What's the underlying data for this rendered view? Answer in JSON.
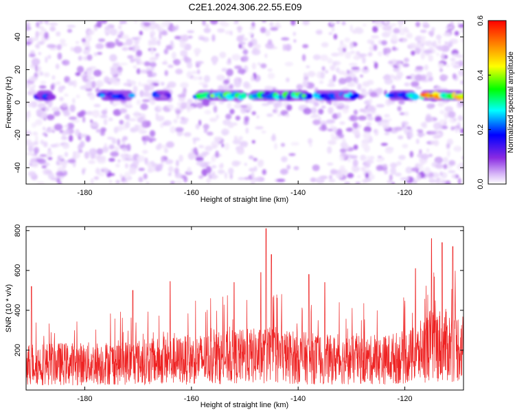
{
  "title": "C2E1.2024.306.22.55.E09",
  "chart_data": [
    {
      "type": "heatmap",
      "xlabel": "Height of straight line (km)",
      "ylabel": "Frequency (Hz)",
      "xlim": [
        -191,
        -109
      ],
      "ylim": [
        -50,
        50
      ],
      "xticks": [
        -180,
        -160,
        -140,
        -120
      ],
      "yticks": [
        -40,
        -20,
        0,
        20,
        40
      ],
      "grid": false,
      "colorbar": {
        "label": "Normalized spectral amplitude",
        "range": [
          0.0,
          0.6
        ],
        "ticks": [
          "0.0",
          "0.2",
          "0.4",
          "0.6"
        ],
        "colormap": [
          "#ffffff",
          "#d8b8f8",
          "#8a2be2",
          "#0000ff",
          "#00ffff",
          "#00ff00",
          "#ffff00",
          "#ff8000",
          "#ff0000"
        ]
      },
      "band": {
        "frequency_hz": 4,
        "segments": [
          {
            "x": [
              -189,
              -186
            ],
            "peak": 0.25
          },
          {
            "x": [
              -177,
              -171
            ],
            "peak": 0.28
          },
          {
            "x": [
              -167,
              -164
            ],
            "peak": 0.25
          },
          {
            "x": [
              -159,
              -150
            ],
            "peak": 0.42
          },
          {
            "x": [
              -149,
              -138
            ],
            "peak": 0.4
          },
          {
            "x": [
              -137,
              -129
            ],
            "peak": 0.3
          },
          {
            "x": [
              -123,
              -118
            ],
            "peak": 0.32
          },
          {
            "x": [
              -117,
              -109
            ],
            "peak": 0.55
          }
        ]
      }
    },
    {
      "type": "line",
      "xlabel": "Height of straight line (km)",
      "ylabel": "SNR (10 * v/v)",
      "xlim": [
        -191,
        -109
      ],
      "ylim": [
        0,
        820
      ],
      "xticks": [
        -180,
        -160,
        -140,
        -120
      ],
      "yticks": [
        200,
        400,
        600,
        800
      ],
      "color": "#ee2222",
      "grid": false,
      "trend": [
        {
          "x": -191,
          "y": 160
        },
        {
          "x": -180,
          "y": 160
        },
        {
          "x": -165,
          "y": 175
        },
        {
          "x": -150,
          "y": 205
        },
        {
          "x": -145,
          "y": 210
        },
        {
          "x": -135,
          "y": 185
        },
        {
          "x": -125,
          "y": 180
        },
        {
          "x": -118,
          "y": 210
        },
        {
          "x": -115,
          "y": 280
        },
        {
          "x": -109,
          "y": 260
        }
      ],
      "peaks": [
        {
          "x": -190,
          "y": 520
        },
        {
          "x": -171,
          "y": 500
        },
        {
          "x": -164,
          "y": 545
        },
        {
          "x": -152,
          "y": 540
        },
        {
          "x": -147,
          "y": 590
        },
        {
          "x": -146,
          "y": 810
        },
        {
          "x": -145,
          "y": 680
        },
        {
          "x": -138,
          "y": 580
        },
        {
          "x": -135,
          "y": 540
        },
        {
          "x": -118,
          "y": 610
        },
        {
          "x": -115,
          "y": 760
        },
        {
          "x": -113,
          "y": 740
        },
        {
          "x": -111,
          "y": 720
        }
      ]
    }
  ]
}
